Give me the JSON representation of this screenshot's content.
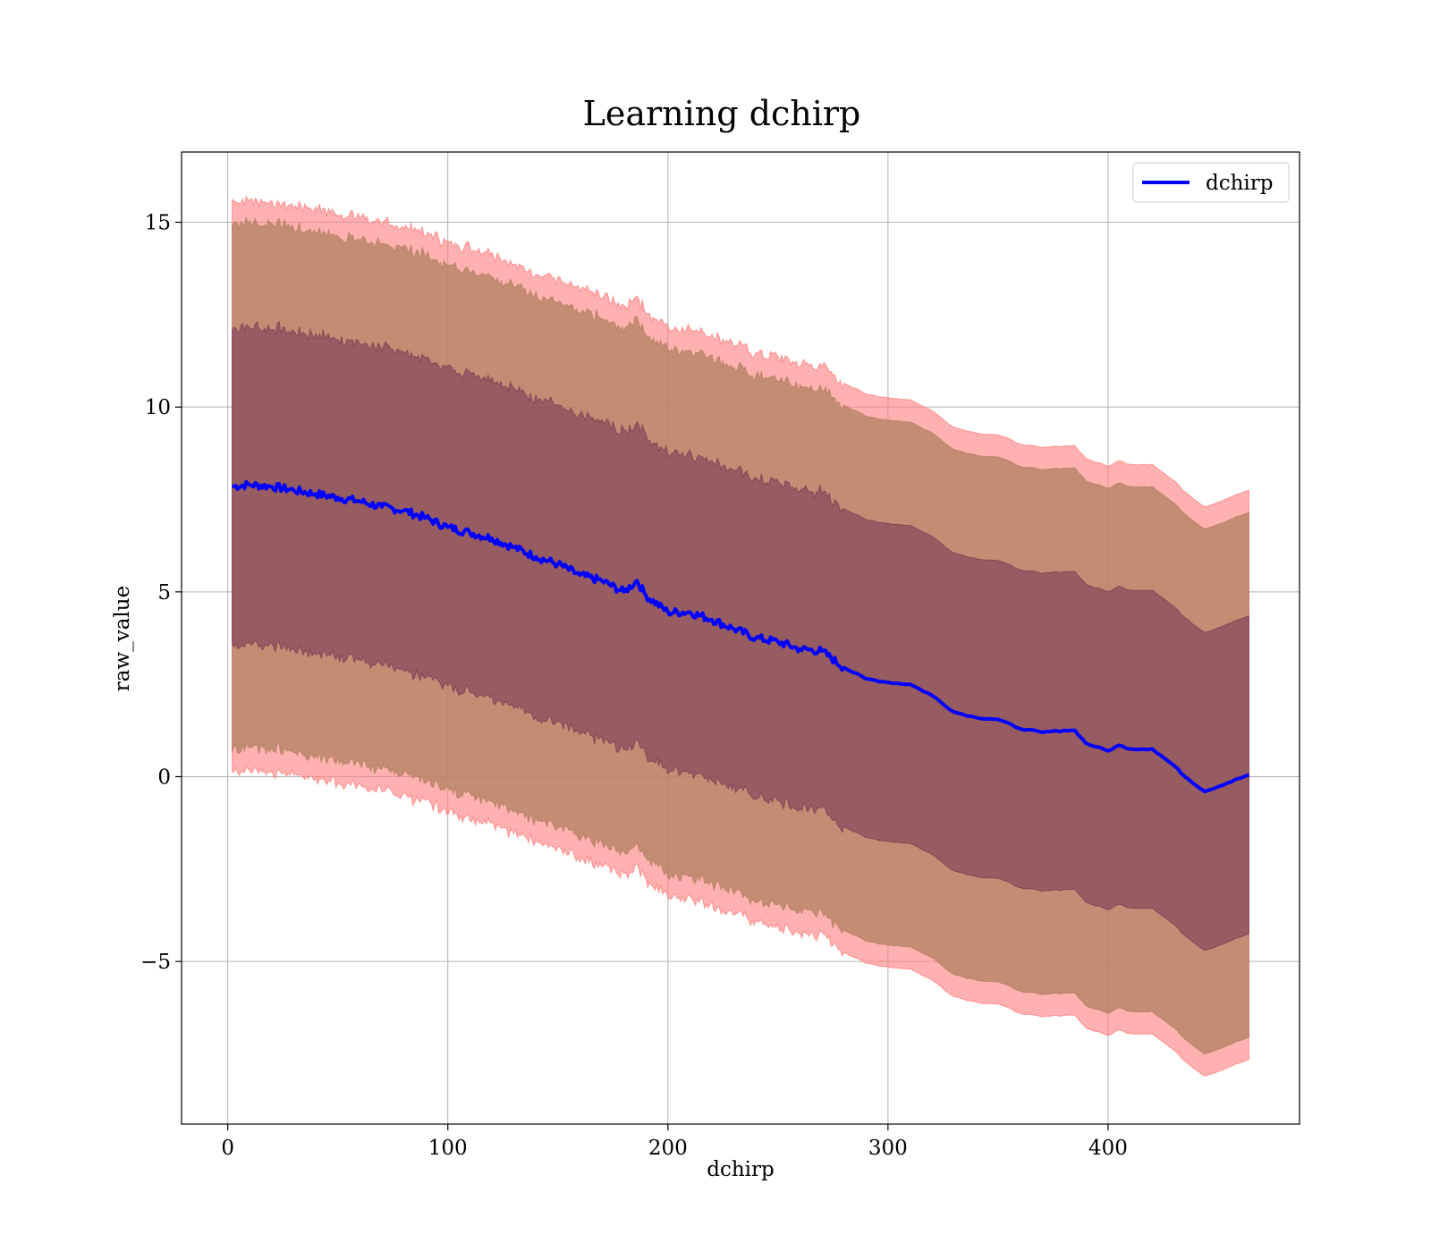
{
  "chart_data": {
    "type": "line",
    "title": "Learning dchirp",
    "xlabel": "dchirp",
    "ylabel": "raw_value",
    "xlim": [
      -21,
      487
    ],
    "ylim": [
      -9.4,
      16.9
    ],
    "xticks": [
      0,
      100,
      200,
      300,
      400
    ],
    "yticks": [
      15,
      10,
      5,
      0,
      -5
    ],
    "ytick_labels": [
      "15",
      "10",
      "5",
      "0",
      "−5"
    ],
    "grid": true,
    "legend_position": "upper right",
    "colors": {
      "line": "#0000ff",
      "outer_band": "#ff8080",
      "middle_band": "#b08060",
      "inner_band": "#7a3f55",
      "grid": "#b0b0b0"
    },
    "series": [
      {
        "name": "dchirp",
        "x": [
          2,
          10,
          20,
          30,
          40,
          50,
          60,
          70,
          80,
          90,
          100,
          110,
          120,
          130,
          140,
          150,
          160,
          170,
          180,
          186,
          190,
          200,
          210,
          220,
          230,
          240,
          250,
          260,
          270,
          280,
          290,
          300,
          310,
          320,
          330,
          340,
          350,
          360,
          370,
          380,
          385,
          390,
          400,
          405,
          410,
          420,
          430,
          435,
          444,
          464
        ],
        "y": [
          7.85,
          7.9,
          7.85,
          7.75,
          7.65,
          7.55,
          7.45,
          7.3,
          7.2,
          7.0,
          6.75,
          6.6,
          6.45,
          6.2,
          5.95,
          5.75,
          5.45,
          5.3,
          5.0,
          5.3,
          4.9,
          4.45,
          4.45,
          4.25,
          4.0,
          3.75,
          3.65,
          3.45,
          3.4,
          2.95,
          2.65,
          2.55,
          2.5,
          2.2,
          1.75,
          1.6,
          1.55,
          1.3,
          1.2,
          1.25,
          1.25,
          0.9,
          0.7,
          0.85,
          0.75,
          0.75,
          0.3,
          0.0,
          -0.4,
          0.05
        ]
      }
    ],
    "bands": [
      {
        "label_offset": 7.7,
        "role": "outer"
      },
      {
        "label_offset": 7.1,
        "role": "middle"
      },
      {
        "label_offset": 4.3,
        "role": "inner"
      }
    ]
  }
}
